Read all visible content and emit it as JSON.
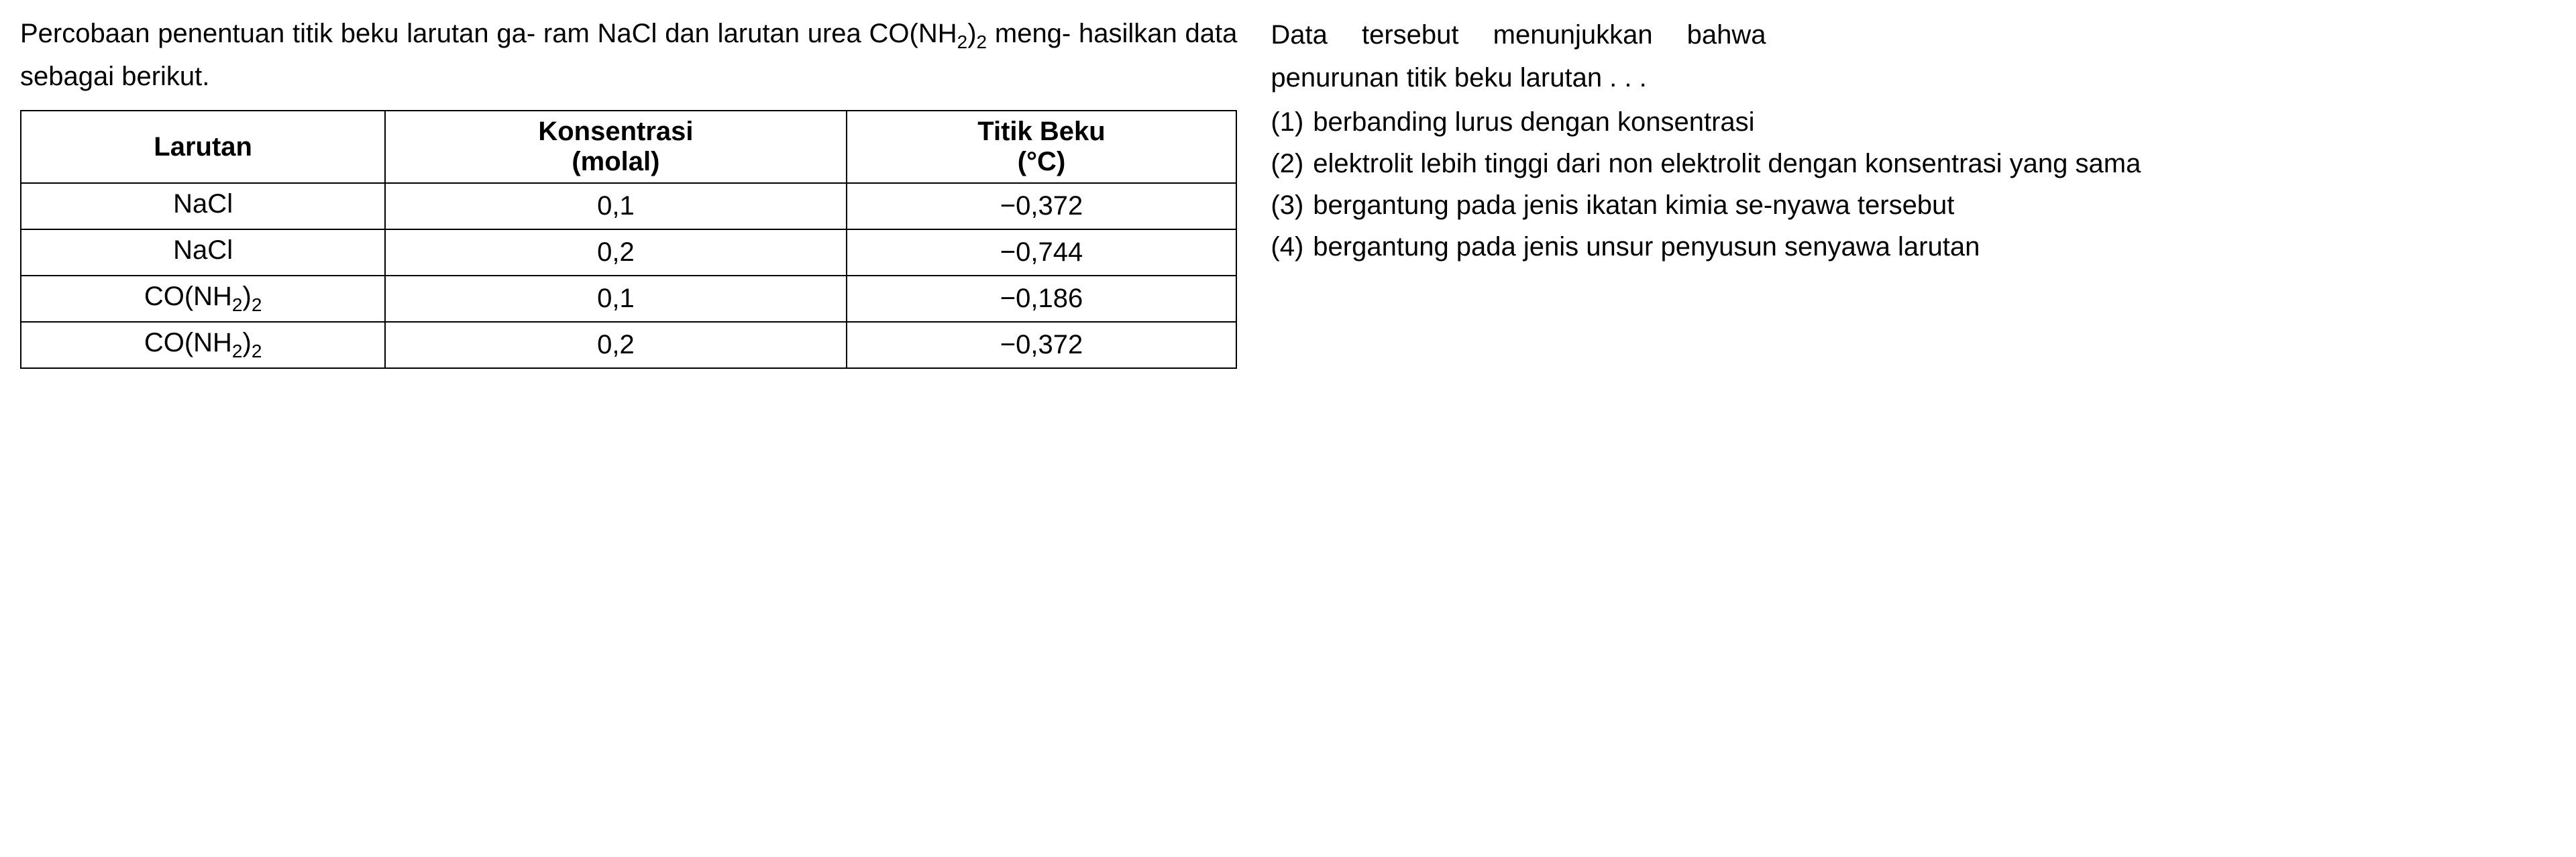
{
  "intro": {
    "line1": "Percobaan penentuan titik beku larutan ga-",
    "line2_prefix": "ram NaCl dan larutan urea CO(NH",
    "line2_sub1": "2",
    "line2_mid": ")",
    "line2_sub2": "2",
    "line2_suffix": " meng-",
    "line3": "hasilkan data sebagai berikut."
  },
  "table": {
    "headers": {
      "col1": "Larutan",
      "col2_top": "Konsentrasi",
      "col2_bottom": "(molal)",
      "col3_top": "Titik Beku",
      "col3_bottom": "(°C)"
    },
    "rows": [
      {
        "larutan_pre": "NaCl",
        "larutan_sub1": "",
        "larutan_mid": "",
        "larutan_sub2": "",
        "konsentrasi": "0,1",
        "titik": "−0,372"
      },
      {
        "larutan_pre": "NaCl",
        "larutan_sub1": "",
        "larutan_mid": "",
        "larutan_sub2": "",
        "konsentrasi": "0,2",
        "titik": "−0,744"
      },
      {
        "larutan_pre": "CO(NH",
        "larutan_sub1": "2",
        "larutan_mid": ")",
        "larutan_sub2": "2",
        "konsentrasi": "0,1",
        "titik": "−0,186"
      },
      {
        "larutan_pre": "CO(NH",
        "larutan_sub1": "2",
        "larutan_mid": ")",
        "larutan_sub2": "2",
        "konsentrasi": "0,2",
        "titik": "−0,372"
      }
    ]
  },
  "question": {
    "line1": "Data tersebut menunjukkan bahwa",
    "line2": "penurunan titik beku larutan . . ."
  },
  "options": [
    {
      "num": "(1)",
      "text": "berbanding lurus dengan konsentrasi"
    },
    {
      "num": "(2)",
      "text": "elektrolit lebih tinggi dari non elektrolit dengan konsentrasi yang sama"
    },
    {
      "num": "(3)",
      "text": "bergantung pada jenis ikatan kimia se-nyawa tersebut"
    },
    {
      "num": "(4)",
      "text": "bergantung pada jenis unsur penyusun senyawa larutan"
    }
  ],
  "style": {
    "font_color": "#000000",
    "background_color": "#ffffff",
    "border_color": "#000000",
    "font_size_body": 40,
    "font_family": "Segoe UI, Arial, sans-serif"
  }
}
